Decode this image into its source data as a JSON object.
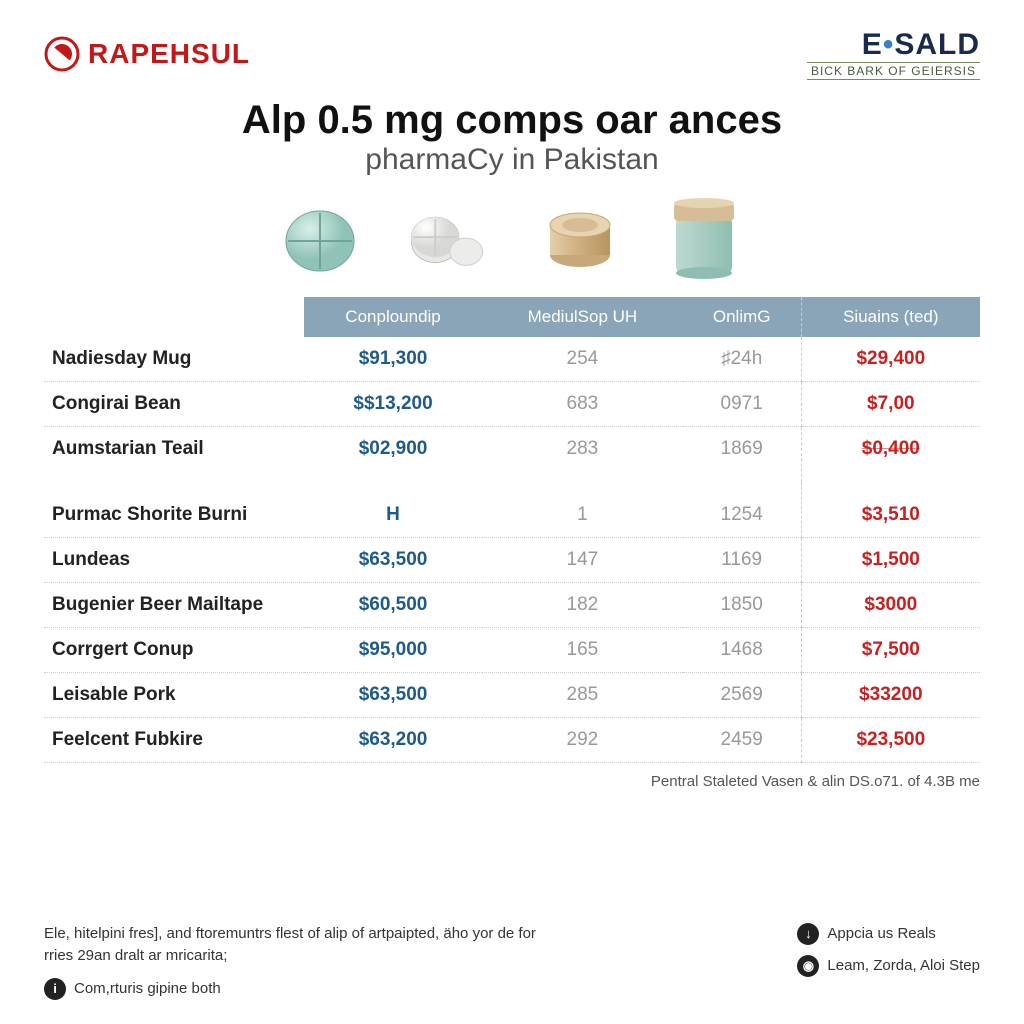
{
  "header": {
    "logo_left_text": "RAPEHSUL",
    "logo_right_main_a": "E",
    "logo_right_main_dot": "•",
    "logo_right_main_b": "SALD",
    "logo_right_sub": "BICK BARK OF GEIERSIS"
  },
  "title": {
    "main": "Alp 0.5 mg comps oar ances",
    "sub": "pharmaCy in Pakistan"
  },
  "table": {
    "header_bg": "#8aa5b8",
    "header_text_color": "#ffffff",
    "columns": [
      "",
      "Conploundip",
      "MediulSop UH",
      "OnlimG",
      "Siuains (ted)"
    ],
    "col_colors": [
      "#222222",
      "#1e5a8a",
      "#999999",
      "#999999",
      "#c62020"
    ],
    "rows": [
      {
        "label": "Nadiesday Mug",
        "c1": "$91,300",
        "c2": "254",
        "c3": "♯24h",
        "c4": "$29,400",
        "strike": false
      },
      {
        "label": "Congirai Bean",
        "c1": "$$13,200",
        "c2": "683",
        "c3": "0971",
        "c4": "$7,00",
        "strike": false
      },
      {
        "label": "Aumstarian Teail",
        "c1": "$02,900",
        "c2": "283",
        "c3": "1869",
        "c4": "$0,400",
        "strike": true
      },
      {
        "label": "Purmac Shorite Burni",
        "c1": "H",
        "c2": "1",
        "c3": "1254",
        "c4": "$3,510",
        "strike": false,
        "section_start": true
      },
      {
        "label": "Lundeas",
        "c1": "$63,500",
        "c2": "147",
        "c3": "1169",
        "c4": "$1,500",
        "strike": false
      },
      {
        "label": "Bugenier Beer Mailtape",
        "c1": "$60,500",
        "c2": "182",
        "c3": "1850",
        "c4": "$3000",
        "strike": false
      },
      {
        "label": "Corrgert Conup",
        "c1": "$95,000",
        "c2": "165",
        "c3": "1468",
        "c4": "$7,500",
        "strike": false
      },
      {
        "label": "Leisable Pork",
        "c1": "$63,500",
        "c2": "285",
        "c3": "2569",
        "c4": "$33200",
        "strike": false
      },
      {
        "label": "Feelcent Fubkire",
        "c1": "$63,200",
        "c2": "292",
        "c3": "2459",
        "c4": "$23,500",
        "strike": false
      }
    ]
  },
  "footnote": "Pentral Staleted Vasen & alin DS.o71. of 4.3B me",
  "bottom": {
    "left_line1": "Ele, hitelpini fres], and ftoremuntrs flest of alip of artpaipted, äho yor de for rries 29an dralt ar mricarita;",
    "left_line2": "Com,rturis gipine both",
    "right_1": "Appcia us Reals",
    "right_2": "Leam, Zorda, Aloi Step"
  },
  "colors": {
    "brand_red": "#c31818",
    "brand_navy": "#1a2a4a",
    "brand_dot": "#3b7dc6",
    "pill_mint": "#a9d6cc",
    "pill_white": "#f2f2f0",
    "pill_tan": "#d4b58a",
    "jar_mint": "#a7cdc4",
    "jar_lid": "#d6bd96"
  }
}
